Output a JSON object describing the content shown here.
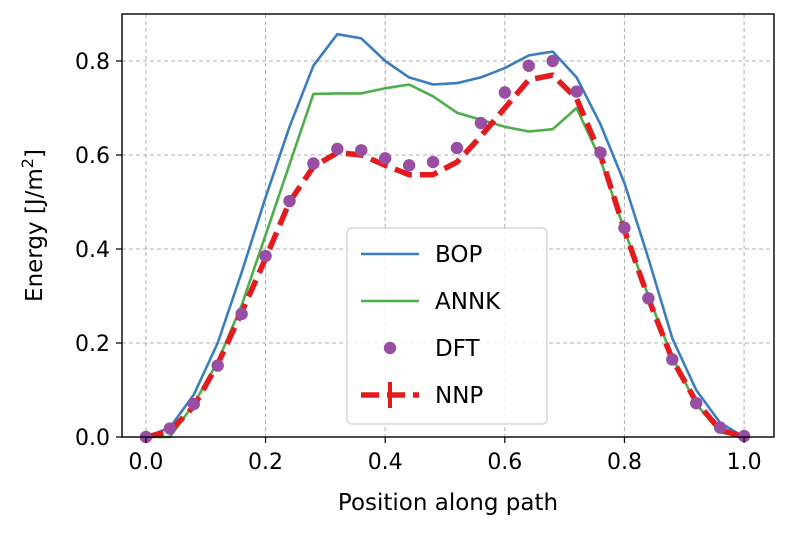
{
  "chart_data": {
    "type": "line",
    "title": "",
    "xlabel": "Position along path",
    "ylabel": "Energy [J/m",
    "ylabel_sup": "2",
    "ylabel_suffix": "]",
    "xlim": [
      -0.04,
      1.05
    ],
    "ylim": [
      0.0,
      0.9
    ],
    "xticks": [
      0.0,
      0.2,
      0.4,
      0.6,
      0.8,
      1.0
    ],
    "xtick_labels": [
      "0.0",
      "0.2",
      "0.4",
      "0.6",
      "0.8",
      "1.0"
    ],
    "yticks": [
      0.0,
      0.2,
      0.4,
      0.6,
      0.8
    ],
    "ytick_labels": [
      "0.0",
      "0.2",
      "0.4",
      "0.6",
      "0.8"
    ],
    "grid": true,
    "legend_position": "bottom-center",
    "series": [
      {
        "name": "BOP",
        "style": "line",
        "color": "#3a7ebf",
        "x": [
          0.0,
          0.04,
          0.08,
          0.12,
          0.16,
          0.2,
          0.24,
          0.28,
          0.32,
          0.36,
          0.4,
          0.44,
          0.48,
          0.52,
          0.56,
          0.6,
          0.64,
          0.68,
          0.72,
          0.76,
          0.8,
          0.84,
          0.88,
          0.92,
          0.96,
          1.0
        ],
        "y": [
          0.0,
          0.02,
          0.09,
          0.2,
          0.35,
          0.51,
          0.66,
          0.79,
          0.857,
          0.848,
          0.8,
          0.765,
          0.75,
          0.753,
          0.765,
          0.785,
          0.812,
          0.82,
          0.765,
          0.665,
          0.54,
          0.38,
          0.21,
          0.1,
          0.03,
          0.0
        ]
      },
      {
        "name": "ANNK",
        "style": "line",
        "color": "#4daf4a",
        "x": [
          0.0,
          0.04,
          0.08,
          0.12,
          0.16,
          0.2,
          0.24,
          0.28,
          0.32,
          0.36,
          0.4,
          0.44,
          0.48,
          0.52,
          0.56,
          0.6,
          0.64,
          0.68,
          0.72,
          0.76,
          0.8,
          0.84,
          0.88,
          0.92,
          0.96,
          1.0
        ],
        "y": [
          0.0,
          0.0,
          0.07,
          0.16,
          0.28,
          0.43,
          0.58,
          0.73,
          0.731,
          0.731,
          0.742,
          0.75,
          0.725,
          0.69,
          0.675,
          0.66,
          0.65,
          0.655,
          0.7,
          0.59,
          0.44,
          0.3,
          0.17,
          0.07,
          0.01,
          0.0
        ]
      },
      {
        "name": "DFT",
        "style": "scatter",
        "color": "#984ea3",
        "x": [
          0.0,
          0.04,
          0.08,
          0.12,
          0.16,
          0.2,
          0.24,
          0.28,
          0.32,
          0.36,
          0.4,
          0.44,
          0.48,
          0.52,
          0.56,
          0.6,
          0.64,
          0.68,
          0.72,
          0.76,
          0.8,
          0.84,
          0.88,
          0.92,
          0.96,
          1.0
        ],
        "y": [
          0.0,
          0.018,
          0.07,
          0.152,
          0.262,
          0.385,
          0.502,
          0.582,
          0.613,
          0.61,
          0.593,
          0.578,
          0.585,
          0.615,
          0.668,
          0.733,
          0.79,
          0.8,
          0.735,
          0.605,
          0.445,
          0.295,
          0.165,
          0.072,
          0.02,
          0.002
        ]
      },
      {
        "name": "NNP",
        "style": "dashed",
        "color": "#e41a1c",
        "x": [
          0.0,
          0.04,
          0.08,
          0.12,
          0.16,
          0.2,
          0.24,
          0.28,
          0.32,
          0.36,
          0.4,
          0.44,
          0.48,
          0.52,
          0.56,
          0.6,
          0.64,
          0.68,
          0.72,
          0.76,
          0.8,
          0.84,
          0.88,
          0.92,
          0.96,
          1.0
        ],
        "y": [
          0.0,
          0.012,
          0.065,
          0.155,
          0.265,
          0.38,
          0.5,
          0.575,
          0.605,
          0.6,
          0.578,
          0.558,
          0.558,
          0.585,
          0.64,
          0.7,
          0.76,
          0.77,
          0.72,
          0.6,
          0.44,
          0.295,
          0.165,
          0.075,
          0.015,
          0.0
        ]
      }
    ]
  }
}
